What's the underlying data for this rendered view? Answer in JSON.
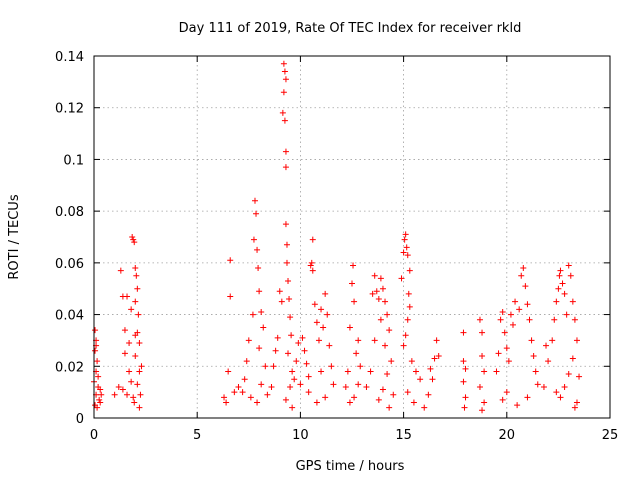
{
  "chart_data": {
    "type": "scatter",
    "title": "Day 111 of 2019, Rate Of TEC Index for receiver rkld",
    "xlabel": "GPS time / hours",
    "ylabel": "ROTI / TECUs",
    "xlim": [
      0,
      25
    ],
    "ylim": [
      0,
      0.14
    ],
    "x_ticks": [
      0,
      5,
      10,
      15,
      20,
      25
    ],
    "y_ticks": [
      0,
      0.02,
      0.04,
      0.06,
      0.08,
      0.1,
      0.12,
      0.14
    ],
    "x_tick_labels": [
      "0",
      "5",
      "10",
      "15",
      "20",
      "25"
    ],
    "y_tick_labels": [
      "0",
      "0.02",
      "0.04",
      "0.06",
      "0.08",
      "0.1",
      "0.12",
      "0.14"
    ],
    "grid": true,
    "marker": "+",
    "color": "#ff0000",
    "series": [
      {
        "name": "ROTI",
        "points": [
          [
            0.05,
            0.034
          ],
          [
            0.1,
            0.03
          ],
          [
            0.05,
            0.026
          ],
          [
            0.15,
            0.022
          ],
          [
            0.1,
            0.018
          ],
          [
            0.0,
            0.014
          ],
          [
            0.2,
            0.012
          ],
          [
            0.1,
            0.009
          ],
          [
            0.25,
            0.007
          ],
          [
            0.05,
            0.005
          ],
          [
            0.3,
            0.011
          ],
          [
            0.15,
            0.004
          ],
          [
            0.35,
            0.009
          ],
          [
            0.2,
            0.016
          ],
          [
            0.1,
            0.028
          ],
          [
            0.3,
            0.006
          ],
          [
            1.0,
            0.009
          ],
          [
            1.2,
            0.012
          ],
          [
            1.3,
            0.057
          ],
          [
            1.4,
            0.047
          ],
          [
            1.5,
            0.034
          ],
          [
            1.6,
            0.047
          ],
          [
            1.5,
            0.025
          ],
          [
            1.7,
            0.018
          ],
          [
            1.8,
            0.014
          ],
          [
            1.6,
            0.009
          ],
          [
            1.9,
            0.008
          ],
          [
            1.4,
            0.011
          ],
          [
            1.7,
            0.029
          ],
          [
            1.8,
            0.042
          ],
          [
            1.85,
            0.07
          ],
          [
            1.9,
            0.069
          ],
          [
            1.95,
            0.068
          ],
          [
            2.0,
            0.058
          ],
          [
            2.05,
            0.055
          ],
          [
            2.1,
            0.05
          ],
          [
            2.0,
            0.045
          ],
          [
            2.15,
            0.04
          ],
          [
            2.1,
            0.033
          ],
          [
            2.2,
            0.029
          ],
          [
            2.0,
            0.024
          ],
          [
            2.2,
            0.018
          ],
          [
            2.1,
            0.013
          ],
          [
            2.25,
            0.009
          ],
          [
            1.95,
            0.006
          ],
          [
            2.2,
            0.004
          ],
          [
            2.0,
            0.032
          ],
          [
            2.3,
            0.02
          ],
          [
            6.3,
            0.008
          ],
          [
            6.4,
            0.006
          ],
          [
            6.5,
            0.018
          ],
          [
            6.6,
            0.061
          ],
          [
            6.6,
            0.047
          ],
          [
            6.8,
            0.01
          ],
          [
            7.0,
            0.012
          ],
          [
            7.2,
            0.01
          ],
          [
            7.3,
            0.015
          ],
          [
            7.4,
            0.022
          ],
          [
            7.5,
            0.03
          ],
          [
            7.6,
            0.008
          ],
          [
            7.7,
            0.04
          ],
          [
            7.75,
            0.069
          ],
          [
            7.8,
            0.084
          ],
          [
            7.85,
            0.079
          ],
          [
            7.9,
            0.065
          ],
          [
            7.95,
            0.058
          ],
          [
            8.0,
            0.049
          ],
          [
            8.1,
            0.041
          ],
          [
            8.2,
            0.035
          ],
          [
            8.0,
            0.027
          ],
          [
            8.3,
            0.02
          ],
          [
            8.1,
            0.013
          ],
          [
            7.9,
            0.006
          ],
          [
            8.4,
            0.009
          ],
          [
            8.6,
            0.012
          ],
          [
            8.7,
            0.02
          ],
          [
            8.8,
            0.026
          ],
          [
            8.9,
            0.031
          ],
          [
            9.0,
            0.049
          ],
          [
            9.1,
            0.045
          ],
          [
            9.15,
            0.118
          ],
          [
            9.2,
            0.137
          ],
          [
            9.25,
            0.134
          ],
          [
            9.3,
            0.131
          ],
          [
            9.2,
            0.126
          ],
          [
            9.25,
            0.115
          ],
          [
            9.3,
            0.103
          ],
          [
            9.3,
            0.097
          ],
          [
            9.3,
            0.075
          ],
          [
            9.35,
            0.067
          ],
          [
            9.35,
            0.06
          ],
          [
            9.4,
            0.053
          ],
          [
            9.45,
            0.046
          ],
          [
            9.5,
            0.039
          ],
          [
            9.55,
            0.032
          ],
          [
            9.4,
            0.025
          ],
          [
            9.6,
            0.018
          ],
          [
            9.5,
            0.012
          ],
          [
            9.3,
            0.007
          ],
          [
            9.6,
            0.004
          ],
          [
            9.7,
            0.015
          ],
          [
            9.8,
            0.022
          ],
          [
            9.9,
            0.029
          ],
          [
            10.0,
            0.013
          ],
          [
            10.1,
            0.031
          ],
          [
            10.2,
            0.026
          ],
          [
            10.3,
            0.021
          ],
          [
            10.4,
            0.016
          ],
          [
            10.5,
            0.059
          ],
          [
            10.55,
            0.06
          ],
          [
            10.6,
            0.057
          ],
          [
            10.6,
            0.069
          ],
          [
            10.7,
            0.044
          ],
          [
            10.8,
            0.037
          ],
          [
            10.9,
            0.03
          ],
          [
            11.0,
            0.042
          ],
          [
            11.1,
            0.035
          ],
          [
            11.2,
            0.048
          ],
          [
            11.3,
            0.04
          ],
          [
            11.4,
            0.028
          ],
          [
            11.5,
            0.02
          ],
          [
            11.6,
            0.013
          ],
          [
            11.2,
            0.008
          ],
          [
            10.8,
            0.006
          ],
          [
            10.4,
            0.01
          ],
          [
            11.0,
            0.018
          ],
          [
            12.2,
            0.012
          ],
          [
            12.3,
            0.018
          ],
          [
            12.4,
            0.035
          ],
          [
            12.5,
            0.052
          ],
          [
            12.55,
            0.059
          ],
          [
            12.6,
            0.045
          ],
          [
            12.7,
            0.025
          ],
          [
            12.8,
            0.013
          ],
          [
            12.6,
            0.008
          ],
          [
            12.9,
            0.02
          ],
          [
            12.4,
            0.006
          ],
          [
            12.8,
            0.03
          ],
          [
            13.2,
            0.012
          ],
          [
            13.4,
            0.018
          ],
          [
            13.5,
            0.048
          ],
          [
            13.6,
            0.055
          ],
          [
            13.7,
            0.049
          ],
          [
            13.8,
            0.046
          ],
          [
            13.9,
            0.054
          ],
          [
            14.0,
            0.05
          ],
          [
            14.1,
            0.045
          ],
          [
            14.2,
            0.04
          ],
          [
            14.3,
            0.034
          ],
          [
            14.1,
            0.028
          ],
          [
            14.4,
            0.022
          ],
          [
            14.2,
            0.017
          ],
          [
            14.0,
            0.011
          ],
          [
            13.8,
            0.007
          ],
          [
            14.5,
            0.009
          ],
          [
            14.3,
            0.004
          ],
          [
            13.6,
            0.03
          ],
          [
            13.9,
            0.038
          ],
          [
            14.9,
            0.054
          ],
          [
            15.0,
            0.064
          ],
          [
            15.05,
            0.069
          ],
          [
            15.1,
            0.071
          ],
          [
            15.15,
            0.066
          ],
          [
            15.2,
            0.063
          ],
          [
            15.3,
            0.057
          ],
          [
            15.25,
            0.048
          ],
          [
            15.3,
            0.043
          ],
          [
            15.2,
            0.038
          ],
          [
            15.1,
            0.032
          ],
          [
            15.0,
            0.028
          ],
          [
            15.4,
            0.022
          ],
          [
            15.6,
            0.018
          ],
          [
            15.8,
            0.015
          ],
          [
            15.2,
            0.01
          ],
          [
            15.5,
            0.006
          ],
          [
            16.0,
            0.004
          ],
          [
            16.2,
            0.009
          ],
          [
            16.4,
            0.015
          ],
          [
            16.5,
            0.023
          ],
          [
            16.6,
            0.03
          ],
          [
            16.7,
            0.024
          ],
          [
            16.3,
            0.019
          ],
          [
            17.9,
            0.033
          ],
          [
            17.9,
            0.022
          ],
          [
            18.0,
            0.019
          ],
          [
            17.9,
            0.014
          ],
          [
            18.0,
            0.008
          ],
          [
            17.95,
            0.004
          ],
          [
            18.7,
            0.038
          ],
          [
            18.8,
            0.033
          ],
          [
            18.8,
            0.024
          ],
          [
            18.9,
            0.018
          ],
          [
            18.7,
            0.012
          ],
          [
            18.9,
            0.006
          ],
          [
            18.8,
            0.003
          ],
          [
            19.5,
            0.018
          ],
          [
            19.6,
            0.025
          ],
          [
            19.7,
            0.038
          ],
          [
            19.8,
            0.041
          ],
          [
            19.9,
            0.033
          ],
          [
            20.0,
            0.027
          ],
          [
            20.1,
            0.022
          ],
          [
            20.2,
            0.04
          ],
          [
            20.3,
            0.036
          ],
          [
            20.4,
            0.045
          ],
          [
            20.6,
            0.042
          ],
          [
            20.7,
            0.055
          ],
          [
            20.8,
            0.058
          ],
          [
            20.9,
            0.051
          ],
          [
            21.0,
            0.044
          ],
          [
            21.1,
            0.038
          ],
          [
            21.2,
            0.03
          ],
          [
            21.3,
            0.024
          ],
          [
            21.4,
            0.018
          ],
          [
            21.5,
            0.013
          ],
          [
            21.0,
            0.008
          ],
          [
            20.5,
            0.005
          ],
          [
            20.0,
            0.01
          ],
          [
            19.8,
            0.007
          ],
          [
            21.8,
            0.012
          ],
          [
            21.9,
            0.028
          ],
          [
            22.0,
            0.022
          ],
          [
            22.2,
            0.03
          ],
          [
            22.3,
            0.038
          ],
          [
            22.4,
            0.045
          ],
          [
            22.5,
            0.05
          ],
          [
            22.55,
            0.055
          ],
          [
            22.6,
            0.057
          ],
          [
            22.7,
            0.052
          ],
          [
            22.8,
            0.048
          ],
          [
            22.9,
            0.04
          ],
          [
            23.0,
            0.059
          ],
          [
            23.1,
            0.055
          ],
          [
            23.2,
            0.045
          ],
          [
            23.3,
            0.038
          ],
          [
            23.4,
            0.03
          ],
          [
            23.2,
            0.023
          ],
          [
            23.0,
            0.017
          ],
          [
            22.8,
            0.012
          ],
          [
            22.6,
            0.008
          ],
          [
            23.4,
            0.006
          ],
          [
            23.3,
            0.004
          ],
          [
            22.4,
            0.01
          ],
          [
            23.5,
            0.016
          ]
        ]
      }
    ]
  }
}
